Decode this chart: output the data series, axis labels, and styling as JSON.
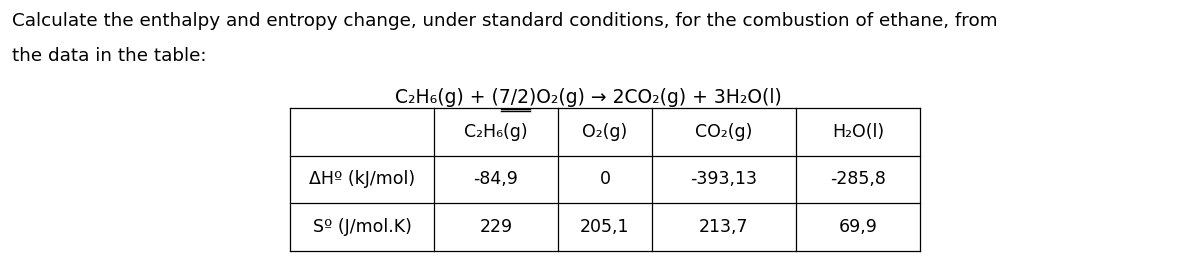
{
  "title_line1": "Calculate the enthalpy and entropy change, under standard conditions, for the combustion of ethane, from",
  "title_line2": "the data in the table:",
  "equation": "C₂H₆(g) + (7/2)O₂(g) → 2CO₂(g) + 3H₂O(l)",
  "col_headers": [
    "C₂H₆(g)",
    "O₂(g)",
    "CO₂(g)",
    "H₂O(l)"
  ],
  "row_headers": [
    "ΔHº (kJ/mol)",
    "Sº (J/mol.K)"
  ],
  "table_data": [
    [
      "-84,9",
      "0",
      "-393,13",
      "-285,8"
    ],
    [
      "229",
      "205,1",
      "213,7",
      "69,9"
    ]
  ],
  "bg_color": "#ffffff",
  "text_color": "#000000",
  "font_size_title": 13.2,
  "font_size_eq": 13.5,
  "font_size_table": 12.5
}
